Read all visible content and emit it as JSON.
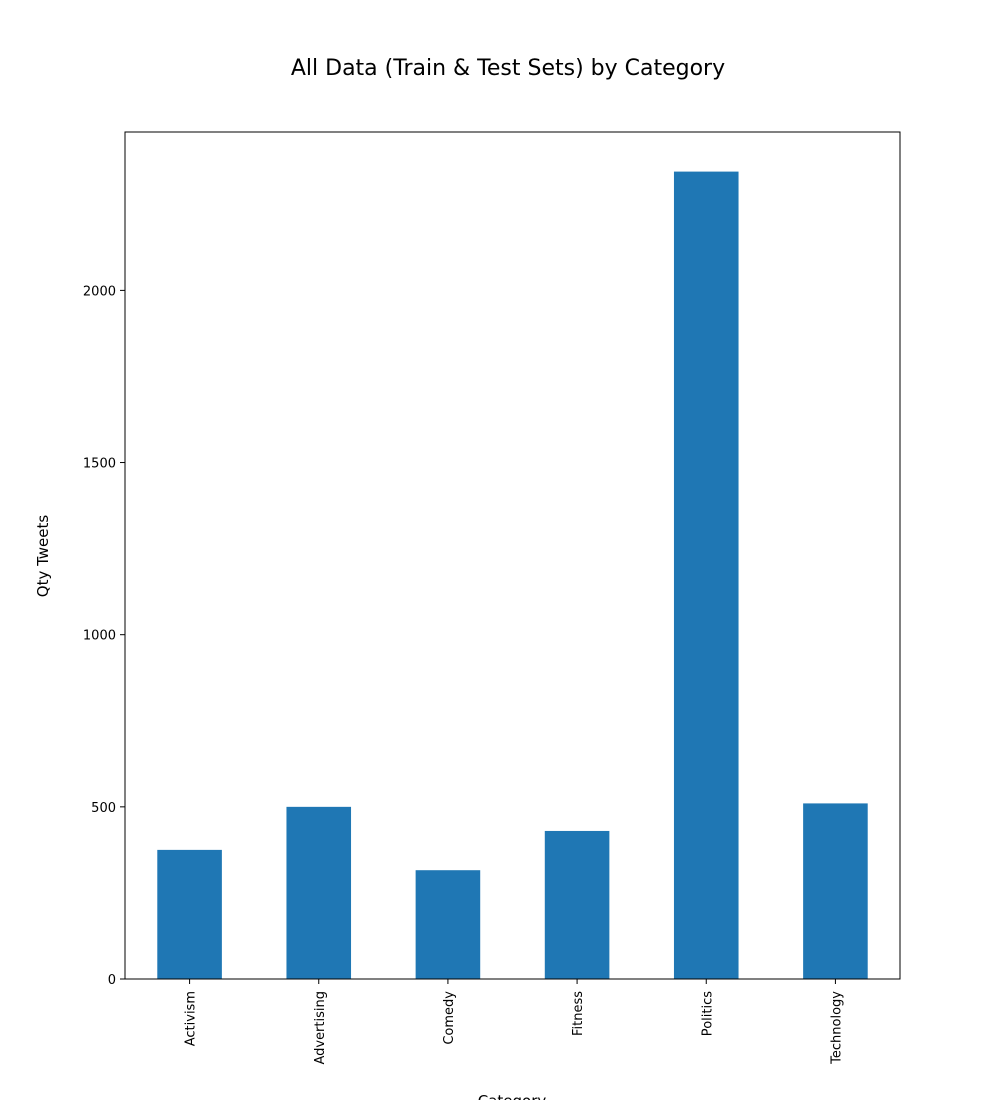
{
  "chart_data": {
    "type": "bar",
    "title": "All Data (Train & Test Sets) by Category",
    "xlabel": "Category",
    "ylabel": "Qty Tweets",
    "categories": [
      "Activism",
      "Advertising",
      "Comedy",
      "Fitness",
      "Politics",
      "Technology"
    ],
    "values": [
      375,
      500,
      316,
      430,
      2345,
      510
    ],
    "ylim": [
      0,
      2460
    ],
    "yticks": [
      0,
      500,
      1000,
      1500,
      2000
    ],
    "grid": false,
    "legend": "none",
    "bar_color": "#1f77b4"
  }
}
